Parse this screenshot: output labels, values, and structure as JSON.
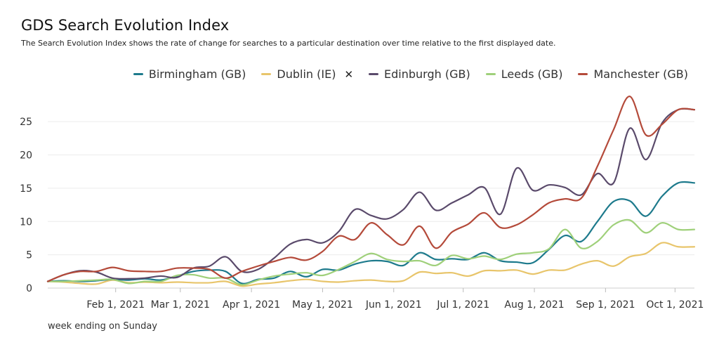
{
  "chart_data": {
    "type": "line",
    "title": "GDS Search Evolution Index",
    "subtitle": "The Search Evolution Index shows the rate of change for searches to a particular destination over time relative to the first displayed date.",
    "xlabel": "week ending on Sunday",
    "ylabel": "",
    "ylim": [
      0,
      28.5
    ],
    "yticks": [
      0,
      5,
      10,
      15,
      20,
      25
    ],
    "xticks": [
      {
        "week": 4.2,
        "label": "Feb 1, 2021"
      },
      {
        "week": 8.2,
        "label": "Mar 1, 2021"
      },
      {
        "week": 12.6,
        "label": "Apr 1, 2021"
      },
      {
        "week": 17.0,
        "label": "May 1, 2021"
      },
      {
        "week": 21.4,
        "label": "Jun 1, 2021"
      },
      {
        "week": 25.7,
        "label": "Jul 1, 2021"
      },
      {
        "week": 30.1,
        "label": "Aug 1, 2021"
      },
      {
        "week": 34.5,
        "label": "Sep 1, 2021"
      },
      {
        "week": 38.8,
        "label": "Oct 1, 2021"
      }
    ],
    "x": [
      0,
      1,
      2,
      3,
      4,
      5,
      6,
      7,
      8,
      9,
      10,
      11,
      12,
      13,
      14,
      15,
      16,
      17,
      18,
      19,
      20,
      21,
      22,
      23,
      24,
      25,
      26,
      27,
      28,
      29,
      30,
      31,
      32,
      33,
      34,
      35,
      36,
      37,
      38,
      39,
      40
    ],
    "legend_position": "top-right",
    "series": [
      {
        "name": "Birmingham (GB)",
        "color": "#1d7a8c",
        "values": [
          1.0,
          1.1,
          1.0,
          1.1,
          1.3,
          1.2,
          1.4,
          1.2,
          1.8,
          2.5,
          2.7,
          2.5,
          0.7,
          1.3,
          1.5,
          2.5,
          1.7,
          2.8,
          2.7,
          3.6,
          4.1,
          4.0,
          3.4,
          5.3,
          4.3,
          4.4,
          4.3,
          5.3,
          4.1,
          3.9,
          3.8,
          5.8,
          7.9,
          7.0,
          10.0,
          13.0,
          13.1,
          10.8,
          13.8,
          15.8,
          15.8
        ]
      },
      {
        "name": "Dublin (IE)",
        "color": "#e8c56b",
        "hidden_marker": true,
        "values": [
          1.0,
          0.9,
          0.7,
          0.6,
          1.2,
          0.8,
          0.9,
          0.8,
          0.9,
          0.8,
          0.8,
          1.0,
          0.3,
          0.6,
          0.8,
          1.1,
          1.3,
          1.0,
          0.9,
          1.1,
          1.2,
          1.0,
          1.1,
          2.4,
          2.2,
          2.3,
          1.8,
          2.6,
          2.6,
          2.7,
          2.1,
          2.7,
          2.7,
          3.6,
          4.1,
          3.3,
          4.7,
          5.2,
          6.8,
          6.2,
          6.2
        ]
      },
      {
        "name": "Edinburgh (GB)",
        "color": "#5a4a6b",
        "values": [
          1.0,
          2.0,
          2.6,
          2.4,
          1.5,
          1.4,
          1.5,
          1.8,
          1.6,
          3.0,
          3.3,
          4.7,
          2.5,
          2.8,
          4.5,
          6.6,
          7.3,
          6.8,
          8.5,
          11.8,
          10.9,
          10.4,
          11.8,
          14.4,
          11.7,
          12.8,
          14.0,
          15.1,
          11.1,
          18.0,
          14.7,
          15.5,
          15.1,
          14.0,
          17.2,
          15.8,
          24.0,
          19.3,
          24.8,
          26.8,
          26.8
        ]
      },
      {
        "name": "Leeds (GB)",
        "color": "#9fd07a",
        "values": [
          1.0,
          1.0,
          1.1,
          1.2,
          1.3,
          0.7,
          1.0,
          1.0,
          1.9,
          2.0,
          1.5,
          1.5,
          0.5,
          1.2,
          1.8,
          2.1,
          2.3,
          1.9,
          2.8,
          4.0,
          5.2,
          4.3,
          4.0,
          4.1,
          3.4,
          4.9,
          4.4,
          4.8,
          4.3,
          5.1,
          5.3,
          5.9,
          8.8,
          6.0,
          7.0,
          9.5,
          10.2,
          8.3,
          9.8,
          8.8,
          8.8
        ]
      },
      {
        "name": "Manchester (GB)",
        "color": "#b44a3a",
        "values": [
          1.0,
          2.0,
          2.5,
          2.5,
          3.1,
          2.6,
          2.5,
          2.5,
          3.0,
          3.0,
          2.8,
          1.5,
          2.5,
          3.3,
          4.0,
          4.6,
          4.2,
          5.5,
          7.8,
          7.3,
          9.8,
          8.0,
          6.5,
          9.3,
          6.0,
          8.4,
          9.6,
          11.3,
          9.1,
          9.5,
          11.0,
          12.8,
          13.4,
          13.5,
          18.3,
          23.8,
          28.8,
          23.0,
          24.6,
          26.8,
          26.8
        ]
      }
    ]
  }
}
